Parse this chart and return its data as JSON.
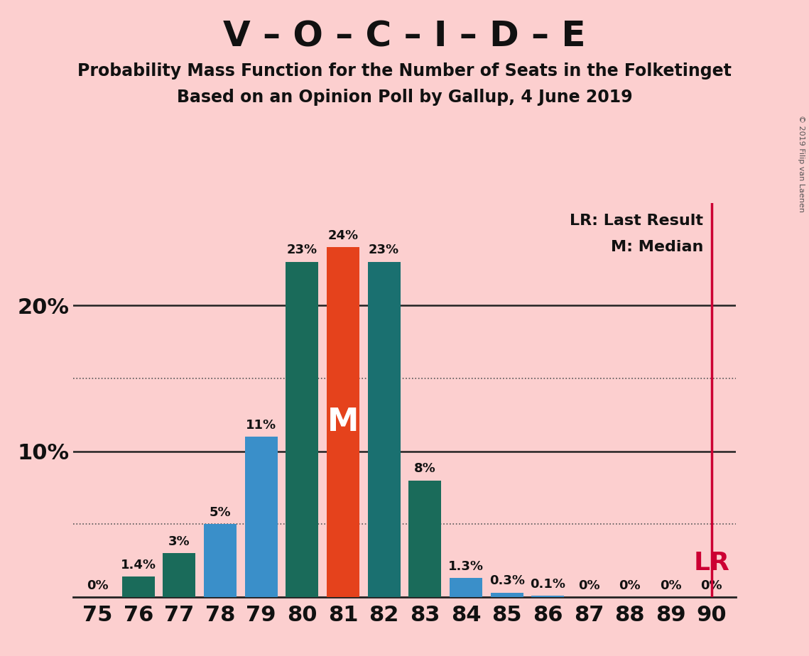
{
  "title": "V – O – C – I – D – E",
  "subtitle1": "Probability Mass Function for the Number of Seats in the Folketinget",
  "subtitle2": "Based on an Opinion Poll by Gallup, 4 June 2019",
  "watermark": "© 2019 Filip van Laenen",
  "seats": [
    75,
    76,
    77,
    78,
    79,
    80,
    81,
    82,
    83,
    84,
    85,
    86,
    87,
    88,
    89,
    90
  ],
  "values": [
    0.0,
    1.4,
    3.0,
    5.0,
    11.0,
    23.0,
    24.0,
    23.0,
    8.0,
    1.3,
    0.3,
    0.1,
    0.0,
    0.0,
    0.0,
    0.0
  ],
  "labels": [
    "0%",
    "1.4%",
    "3%",
    "5%",
    "11%",
    "23%",
    "24%",
    "23%",
    "8%",
    "1.3%",
    "0.3%",
    "0.1%",
    "0%",
    "0%",
    "0%",
    "0%"
  ],
  "colors": [
    "#1a6b5a",
    "#1a6b5a",
    "#1a6b5a",
    "#3a8fc9",
    "#3a8fc9",
    "#1a6b5a",
    "#e5421c",
    "#1a7070",
    "#1a6b5a",
    "#3a8fc9",
    "#3a8fc9",
    "#3a8fc9",
    "#3a8fc9",
    "#3a8fc9",
    "#3a8fc9",
    "#3a8fc9"
  ],
  "median_seat": 81,
  "lr_seat": 90,
  "lr_label": "LR",
  "median_label": "M",
  "lr_legend": "LR: Last Result",
  "m_legend": "M: Median",
  "background_color": "#fccfcf",
  "ylim": [
    0,
    27
  ],
  "ylabel_10": "10%",
  "ylabel_20": "20%",
  "lr_line_color": "#cc0033",
  "dotted_grid_levels": [
    5,
    15
  ],
  "solid_grid_levels": [
    10,
    20
  ],
  "bar_width": 0.8
}
